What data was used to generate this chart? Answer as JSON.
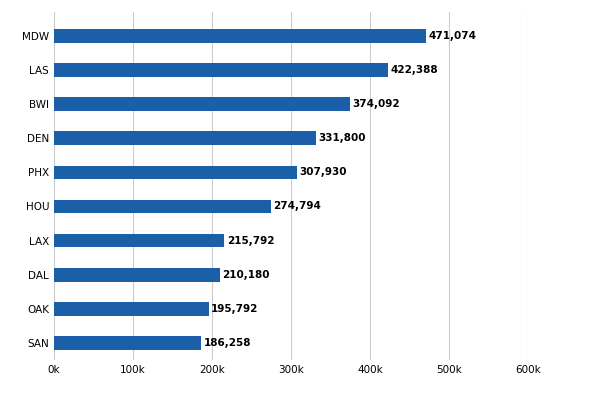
{
  "categories": [
    "MDW",
    "LAS",
    "BWI",
    "DEN",
    "PHX",
    "HOU",
    "LAX",
    "DAL",
    "OAK",
    "SAN"
  ],
  "values": [
    471074,
    422388,
    374092,
    331800,
    307930,
    274794,
    215792,
    210180,
    195792,
    186258
  ],
  "labels": [
    "471,074",
    "422,388",
    "374,092",
    "331,800",
    "307,930",
    "274,794",
    "215,792",
    "210,180",
    "195,792",
    "186,258"
  ],
  "bar_color": "#1a5fa8",
  "background_color": "#ffffff",
  "xlim": [
    0,
    600000
  ],
  "xticks": [
    0,
    100000,
    200000,
    300000,
    400000,
    500000,
    600000
  ],
  "xtick_labels": [
    "0k",
    "100k",
    "200k",
    "300k",
    "400k",
    "500k",
    "600k"
  ],
  "grid_color": "#cccccc",
  "label_fontsize": 7.5,
  "tick_fontsize": 7.5,
  "bar_height": 0.4
}
